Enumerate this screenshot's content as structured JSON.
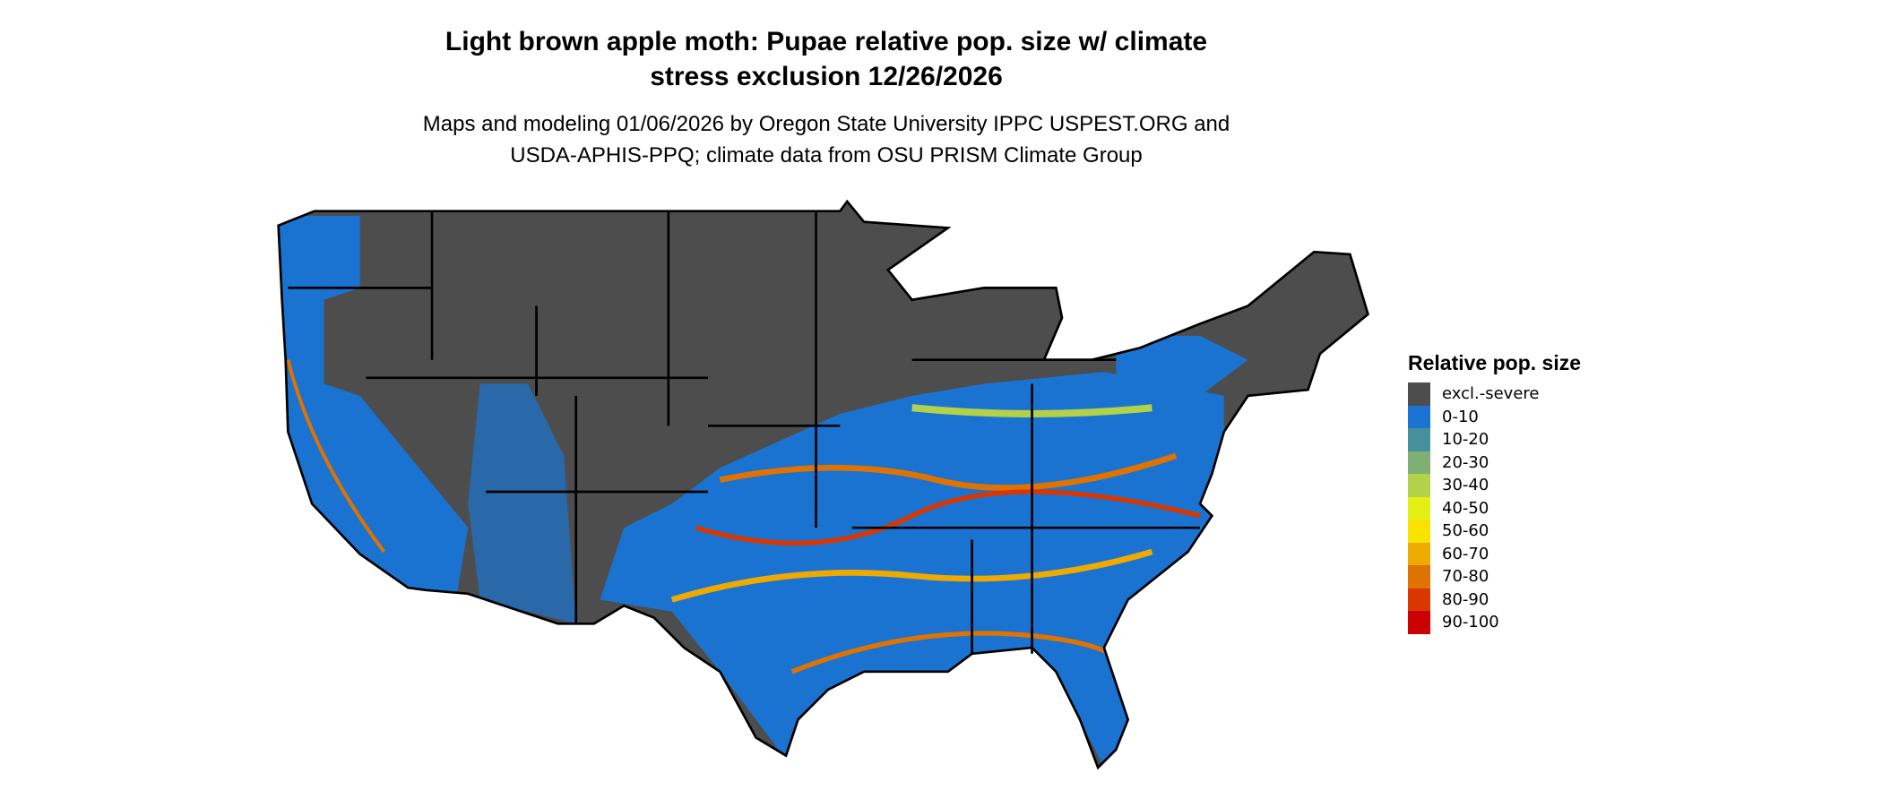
{
  "title": {
    "line1": "Light brown apple moth: Pupae relative pop. size w/ climate",
    "line2": "stress exclusion 12/26/2026"
  },
  "subtitle": {
    "line1": "Maps and modeling 01/06/2026 by Oregon State University IPPC USPEST.ORG and",
    "line2": "USDA-APHIS-PPQ; climate data from OSU PRISM Climate Group"
  },
  "legend": {
    "title": "Relative pop. size",
    "items": [
      {
        "label": "excl.-severe",
        "color": "#4d4d4d"
      },
      {
        "label": "0-10",
        "color": "#1a73d0"
      },
      {
        "label": "10-20",
        "color": "#46909e"
      },
      {
        "label": "20-30",
        "color": "#7eb073"
      },
      {
        "label": "30-40",
        "color": "#b3d24a"
      },
      {
        "label": "40-50",
        "color": "#e3f016"
      },
      {
        "label": "50-60",
        "color": "#f7e200"
      },
      {
        "label": "60-70",
        "color": "#eeaa00"
      },
      {
        "label": "70-80",
        "color": "#e07200"
      },
      {
        "label": "80-90",
        "color": "#d93600"
      },
      {
        "label": "90-100",
        "color": "#cc0000"
      }
    ]
  }
}
